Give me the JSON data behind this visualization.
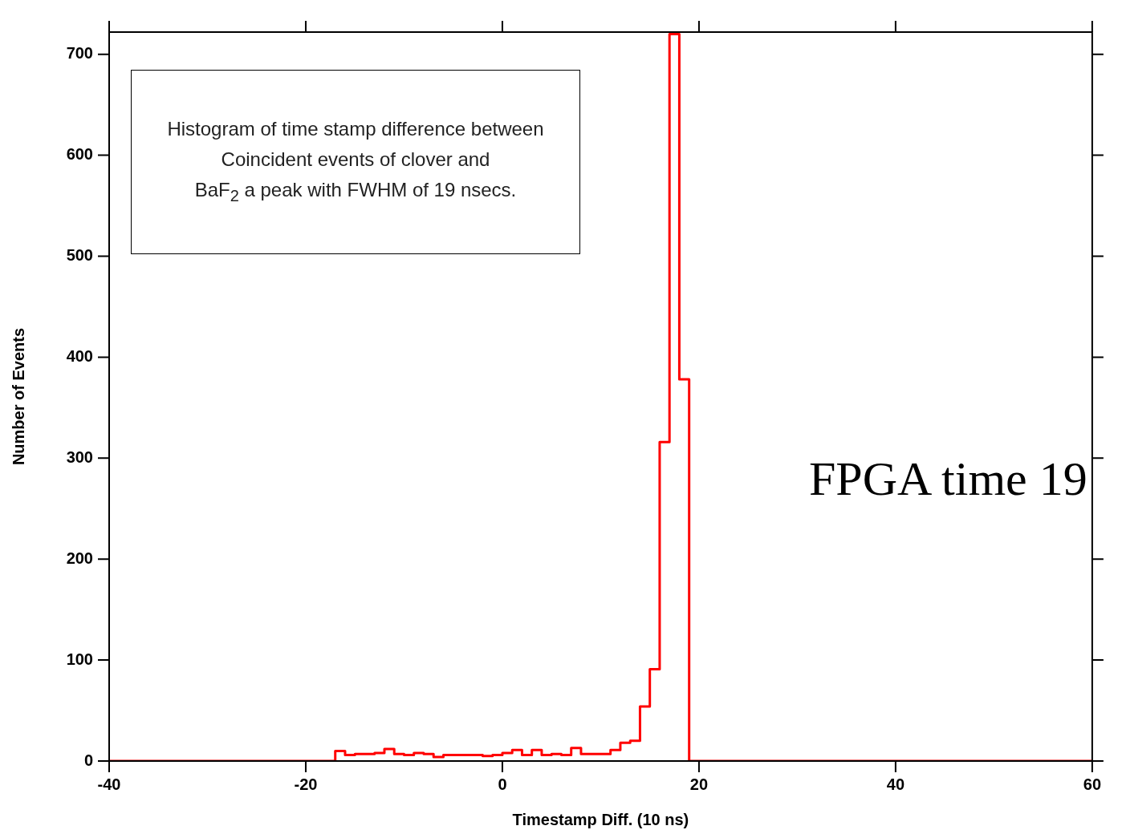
{
  "chart_data": {
    "type": "histogram",
    "xlabel": "Timestamp Diff. (10 ns)",
    "ylabel": "Number of Events",
    "bins": [
      -40,
      -17,
      -16,
      -15,
      -14,
      -13,
      -12,
      -11,
      -10,
      -9,
      -8,
      -7,
      -6,
      -5,
      -4,
      -3,
      -2,
      -1,
      0,
      1,
      2,
      3,
      4,
      5,
      6,
      7,
      8,
      9,
      10,
      11,
      12,
      13,
      14,
      15,
      16,
      17,
      18,
      19,
      60
    ],
    "values": [
      0,
      10,
      6,
      7,
      7,
      8,
      12,
      7,
      6,
      8,
      7,
      4,
      6,
      6,
      6,
      6,
      5,
      6,
      8,
      11,
      6,
      11,
      6,
      7,
      6,
      13,
      7,
      7,
      7,
      11,
      18,
      20,
      54,
      91,
      316,
      720,
      378,
      0
    ],
    "color": "#ff0000",
    "xlim": [
      -40,
      60
    ],
    "xticks": [
      -40,
      -20,
      0,
      20,
      40,
      60
    ],
    "ylim": [
      0,
      722
    ],
    "yticks": [
      0,
      100,
      200,
      300,
      400,
      500,
      600,
      700
    ],
    "grid": false,
    "legend": false,
    "annotations": [
      "Histogram of time stamp difference between\nCoincident events of clover and\nBaF$_{2}$ a peak with FWHM of 19 nsecs.",
      "FPGA time 19"
    ]
  }
}
